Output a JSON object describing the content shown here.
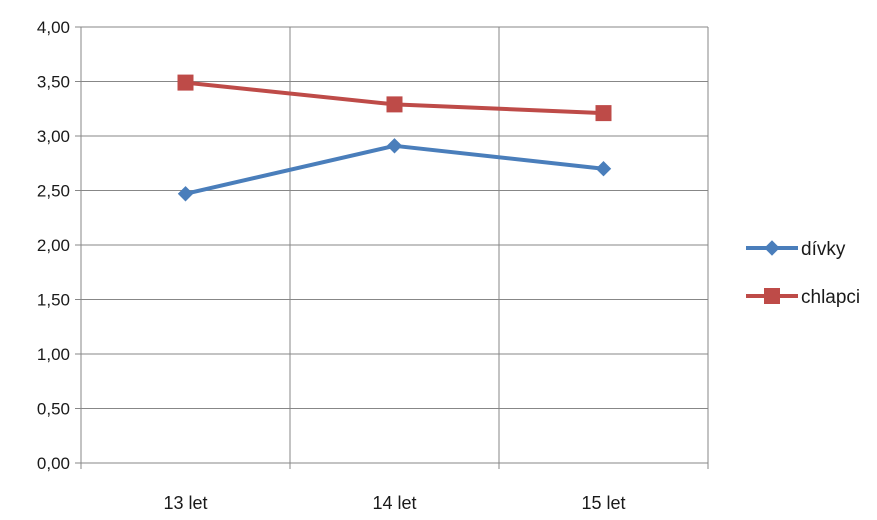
{
  "chart_data": {
    "type": "line",
    "title": "",
    "xlabel": "",
    "ylabel": "",
    "categories": [
      "13 let",
      "14 let",
      "15 let"
    ],
    "ylim": [
      0,
      4
    ],
    "y_ticks": [
      "0,00",
      "0,50",
      "1,00",
      "1,50",
      "2,00",
      "2,50",
      "3,00",
      "3,50",
      "4,00"
    ],
    "grid": true,
    "legend_position": "right",
    "series": [
      {
        "name": "dívky",
        "values": [
          2.47,
          2.91,
          2.7
        ],
        "color": "#4a7ebb",
        "marker": "diamond"
      },
      {
        "name": "chlapci",
        "values": [
          3.49,
          3.29,
          3.21
        ],
        "color": "#be4b48",
        "marker": "square"
      }
    ]
  }
}
